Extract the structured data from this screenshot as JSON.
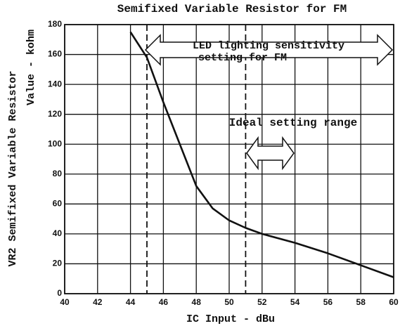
{
  "chart_data": {
    "type": "line",
    "title": "Semifixed Variable Resistor for FM",
    "xlabel": "IC Input - dBu",
    "ylabel": [
      "VR2 Semifixed Variable Resistor",
      "Value - kohm"
    ],
    "annotations": [
      "LED lighting sensitivity",
      "setting for FM",
      "Ideal setting range"
    ],
    "x": [
      44,
      45,
      46,
      47,
      48,
      49,
      50,
      51,
      52,
      54,
      56,
      58,
      60
    ],
    "values": [
      175,
      158,
      128,
      100,
      72,
      57,
      49,
      44,
      40,
      34,
      27,
      19,
      11
    ],
    "color": "#111111",
    "vlines": [
      45,
      51
    ],
    "xlim": [
      40,
      60
    ],
    "xticks": [
      40,
      42,
      44,
      46,
      48,
      50,
      52,
      54,
      56,
      58,
      60
    ],
    "ylim": [
      0,
      180
    ],
    "yticks": [
      0,
      20,
      40,
      60,
      80,
      100,
      120,
      140,
      160,
      180
    ],
    "grid": true
  }
}
